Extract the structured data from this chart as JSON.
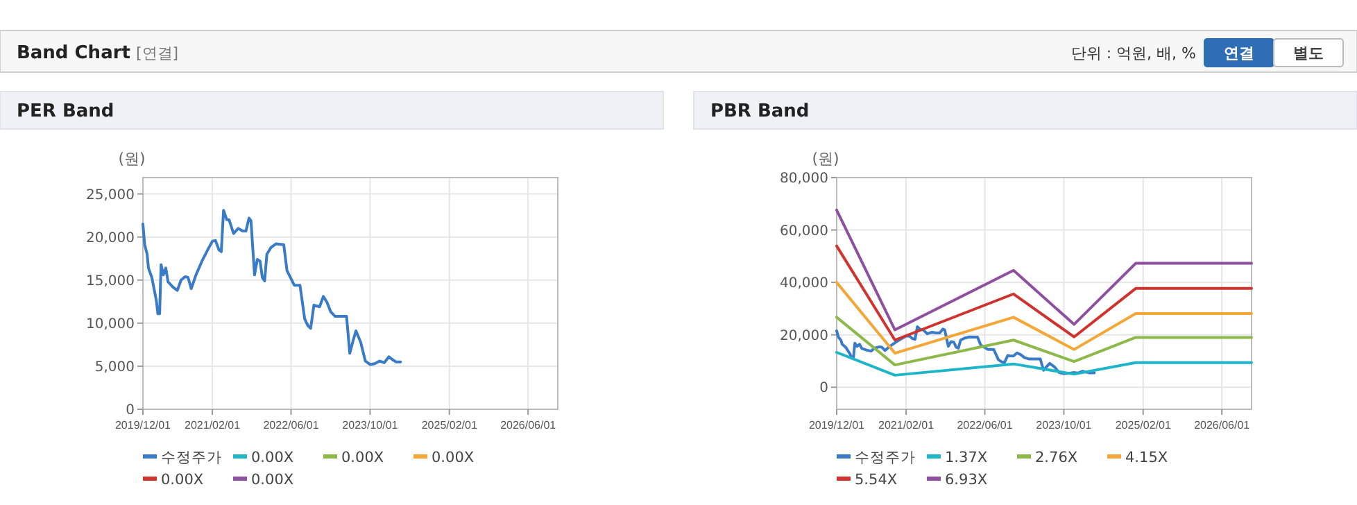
{
  "chart_data": [
    {
      "type": "other",
      "title": "Band Chart",
      "annotations": [
        "[연결]",
        "단위 : 억원, 배, %",
        "연결",
        "별도"
      ]
    },
    {
      "type": "line",
      "title": "PER Band",
      "ylabel": "(원)",
      "xlim": [
        "2019-12-01",
        "2026-12-01"
      ],
      "ylim": [
        0,
        26900
      ],
      "xticks": [
        {
          "value": "2019-12-01",
          "label": "2019/12/01"
        },
        {
          "value": "2021-02-01",
          "label": "2021/02/01"
        },
        {
          "value": "2022-06-01",
          "label": "2022/06/01"
        },
        {
          "value": "2023-10-01",
          "label": "2023/10/01"
        },
        {
          "value": "2025-02-01",
          "label": "2025/02/01"
        },
        {
          "value": "2026-06-01",
          "label": "2026/06/01"
        }
      ],
      "yticks": [
        0,
        {
          "value": 5000,
          "label": "5,000"
        },
        {
          "value": 10000,
          "label": "10,000"
        },
        {
          "value": 15000,
          "label": "15,000"
        },
        {
          "value": 20000,
          "label": "20,000"
        },
        {
          "value": 25000,
          "label": "25,000"
        }
      ],
      "grid": true,
      "legend": "bottom",
      "marker": "none",
      "line_style": "solid",
      "series": [
        {
          "name": "수정주가",
          "color": "#3a7bc8",
          "x": [
            "2019-12-01",
            "2019-12-12",
            "2019-12-27",
            "2020-01-04",
            "2020-01-25",
            "2020-02-22",
            "2020-03-02",
            "2020-03-13",
            "2020-03-22",
            "2020-04-05",
            "2020-04-20",
            "2020-05-04",
            "2020-06-02",
            "2020-06-30",
            "2020-07-23",
            "2020-08-18",
            "2020-09-04",
            "2020-09-24",
            "2020-10-23",
            "2020-11-29",
            "2021-01-03",
            "2021-02-01",
            "2021-02-20",
            "2021-03-14",
            "2021-03-28",
            "2021-04-11",
            "2021-05-01",
            "2021-05-15",
            "2021-06-12",
            "2021-07-10",
            "2021-08-07",
            "2021-08-27",
            "2021-09-15",
            "2021-09-27",
            "2021-10-19",
            "2021-11-05",
            "2021-11-22",
            "2021-12-06",
            "2021-12-20",
            "2022-01-03",
            "2022-01-29",
            "2022-02-28",
            "2022-04-17",
            "2022-05-07",
            "2022-06-21",
            "2022-07-26",
            "2022-08-24",
            "2022-09-13",
            "2022-09-30",
            "2022-10-20",
            "2022-11-04",
            "2022-11-24",
            "2022-12-17",
            "2023-01-09",
            "2023-02-01",
            "2023-02-27",
            "2023-04-16",
            "2023-05-09",
            "2023-05-29",
            "2023-06-16",
            "2023-07-06",
            "2023-08-04",
            "2023-09-02",
            "2023-10-01",
            "2023-10-30",
            "2023-11-28",
            "2023-12-27",
            "2024-01-25",
            "2024-02-14",
            "2024-03-08",
            "2024-04-06"
          ],
          "values": [
            21500,
            19100,
            18000,
            16400,
            15300,
            12600,
            11100,
            11100,
            16800,
            15600,
            16400,
            14800,
            14200,
            13800,
            15000,
            15400,
            15300,
            14000,
            15600,
            17200,
            18500,
            19500,
            19600,
            18500,
            18300,
            23100,
            22000,
            22000,
            20400,
            21000,
            20700,
            20700,
            22200,
            21900,
            15600,
            17400,
            17200,
            15300,
            14900,
            18000,
            18800,
            19200,
            19100,
            16100,
            14400,
            14400,
            10500,
            9700,
            9400,
            12100,
            12000,
            11900,
            13100,
            12400,
            11300,
            10800,
            10800,
            10800,
            6500,
            7800,
            9100,
            7800,
            5600,
            5200,
            5300,
            5600,
            5400,
            6100,
            5800,
            5500,
            5500
          ]
        },
        {
          "name": "0.00X",
          "color": "#1fb5c8"
        },
        {
          "name": "0.00X",
          "color": "#8db94a"
        },
        {
          "name": "0.00X",
          "color": "#f4a636"
        },
        {
          "name": "0.00X",
          "color": "#d0332e"
        },
        {
          "name": "0.00X",
          "color": "#8e4f9e"
        }
      ]
    },
    {
      "type": "line",
      "title": "PBR Band",
      "ylabel": "(원)",
      "xlim": [
        "2019-12-01",
        "2026-12-01"
      ],
      "ylim": [
        -8400,
        80000
      ],
      "xticks": [
        {
          "value": "2019-12-01",
          "label": "2019/12/01"
        },
        {
          "value": "2021-02-01",
          "label": "2021/02/01"
        },
        {
          "value": "2022-06-01",
          "label": "2022/06/01"
        },
        {
          "value": "2023-10-01",
          "label": "2023/10/01"
        },
        {
          "value": "2025-02-01",
          "label": "2025/02/01"
        },
        {
          "value": "2026-06-01",
          "label": "2026/06/01"
        }
      ],
      "yticks": [
        0,
        {
          "value": 20000,
          "label": "20,000"
        },
        {
          "value": 40000,
          "label": "40,000"
        },
        {
          "value": 60000,
          "label": "60,000"
        },
        {
          "value": 80000,
          "label": "80,000"
        }
      ],
      "grid": true,
      "legend": "bottom",
      "marker": "none",
      "line_style": "solid",
      "series": [
        {
          "name": "수정주가",
          "color": "#3a7bc8",
          "x": [
            "2019-12-01",
            "2019-12-12",
            "2019-12-27",
            "2020-01-04",
            "2020-01-25",
            "2020-02-22",
            "2020-03-02",
            "2020-03-13",
            "2020-03-22",
            "2020-04-05",
            "2020-04-20",
            "2020-05-04",
            "2020-06-02",
            "2020-06-30",
            "2020-07-23",
            "2020-08-18",
            "2020-09-04",
            "2020-09-24",
            "2020-10-23",
            "2020-11-29",
            "2021-01-03",
            "2021-02-01",
            "2021-02-20",
            "2021-03-14",
            "2021-03-28",
            "2021-04-11",
            "2021-05-01",
            "2021-05-15",
            "2021-06-12",
            "2021-07-10",
            "2021-08-07",
            "2021-08-27",
            "2021-09-15",
            "2021-09-27",
            "2021-10-19",
            "2021-11-05",
            "2021-11-22",
            "2021-12-06",
            "2021-12-20",
            "2022-01-03",
            "2022-01-29",
            "2022-02-28",
            "2022-04-17",
            "2022-05-07",
            "2022-06-21",
            "2022-07-26",
            "2022-08-24",
            "2022-09-13",
            "2022-09-30",
            "2022-10-20",
            "2022-11-04",
            "2022-11-24",
            "2022-12-17",
            "2023-01-09",
            "2023-02-01",
            "2023-02-27",
            "2023-04-16",
            "2023-05-09",
            "2023-05-29",
            "2023-06-16",
            "2023-07-06",
            "2023-08-04",
            "2023-09-02",
            "2023-10-01",
            "2023-10-30",
            "2023-11-28",
            "2023-12-27",
            "2024-01-25",
            "2024-02-14",
            "2024-03-08",
            "2024-04-06"
          ],
          "values": [
            21500,
            19100,
            18000,
            16400,
            15300,
            12600,
            11100,
            11100,
            16800,
            15600,
            16400,
            14800,
            14200,
            13800,
            15000,
            15400,
            15300,
            14000,
            15600,
            17200,
            18500,
            19500,
            19600,
            18500,
            18300,
            23100,
            22000,
            22000,
            20400,
            21000,
            20700,
            20700,
            22200,
            21900,
            15600,
            17400,
            17200,
            15300,
            14900,
            18000,
            18800,
            19200,
            19100,
            16100,
            14400,
            14400,
            10500,
            9700,
            9400,
            12100,
            12000,
            11900,
            13100,
            12400,
            11300,
            10800,
            10800,
            10800,
            6500,
            7800,
            9100,
            7800,
            5600,
            5200,
            5300,
            5600,
            5400,
            6100,
            5800,
            5500,
            5500
          ]
        },
        {
          "name": "1.37X",
          "color": "#1fb5c8",
          "x": [
            "2019-12-01",
            "2020-11-24",
            "2022-11-25",
            "2023-12-03",
            "2024-12-17",
            "2026-12-01"
          ],
          "values": [
            13300,
            4600,
            8900,
            5000,
            9400,
            9400
          ]
        },
        {
          "name": "2.76X",
          "color": "#8db94a",
          "x": [
            "2019-12-01",
            "2020-11-24",
            "2022-11-25",
            "2023-12-03",
            "2024-12-17",
            "2026-12-01"
          ],
          "values": [
            26700,
            8500,
            18000,
            9800,
            19000,
            19000
          ]
        },
        {
          "name": "4.15X",
          "color": "#f4a636",
          "x": [
            "2019-12-01",
            "2020-11-24",
            "2022-11-25",
            "2023-12-03",
            "2024-12-17",
            "2026-12-01"
          ],
          "values": [
            40000,
            13000,
            26700,
            14400,
            28100,
            28100
          ]
        },
        {
          "name": "5.54X",
          "color": "#d0332e",
          "x": [
            "2019-12-01",
            "2020-11-24",
            "2022-11-25",
            "2023-12-03",
            "2024-12-17",
            "2026-12-01"
          ],
          "values": [
            53900,
            18000,
            35600,
            19200,
            37700,
            37700
          ]
        },
        {
          "name": "6.93X",
          "color": "#8e4f9e",
          "x": [
            "2019-12-01",
            "2020-11-24",
            "2022-11-25",
            "2023-12-03",
            "2024-12-17",
            "2026-12-01"
          ],
          "values": [
            67600,
            21900,
            44600,
            24000,
            47300,
            47300
          ]
        }
      ]
    }
  ]
}
